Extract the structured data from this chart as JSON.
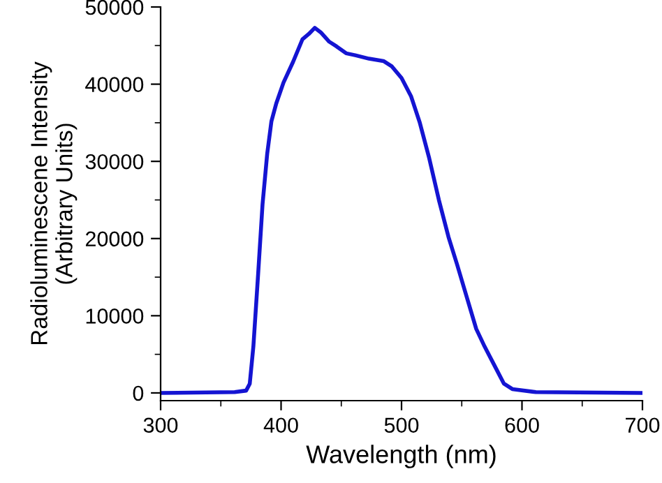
{
  "chart_data": {
    "type": "line",
    "xlabel": "Wavelength (nm)",
    "ylabel": "Radioluminescene Intensity\n(Arbitrary Units)",
    "x": [
      300,
      361.5,
      371,
      374,
      377,
      381,
      384.6,
      388.5,
      392,
      396,
      402,
      410,
      417.7,
      423,
      428,
      433,
      440,
      446,
      454,
      461.5,
      473,
      485,
      492,
      500,
      508,
      515,
      523,
      531,
      539,
      546,
      554,
      562,
      569,
      577,
      585,
      592,
      611.5,
      700
    ],
    "series": [
      {
        "color": "#1414d2",
        "values": [
          0,
          100,
          300,
          1200,
          6000,
          15500,
          24400,
          31000,
          35200,
          37500,
          40200,
          42900,
          45800,
          46500,
          47300,
          46700,
          45500,
          44900,
          44000,
          43750,
          43300,
          43000,
          42300,
          40800,
          38400,
          35100,
          30400,
          25000,
          20200,
          16700,
          12500,
          8300,
          6000,
          3600,
          1200,
          500,
          100,
          0
        ]
      }
    ],
    "xlim": [
      300,
      700
    ],
    "ylim": [
      -1000,
      50000
    ],
    "xticks": [
      300,
      400,
      500,
      600,
      700
    ],
    "yticks": [
      0,
      10000,
      20000,
      30000,
      40000,
      50000
    ],
    "grid": false,
    "legend": false,
    "marker": "none",
    "line_style": "solid"
  }
}
